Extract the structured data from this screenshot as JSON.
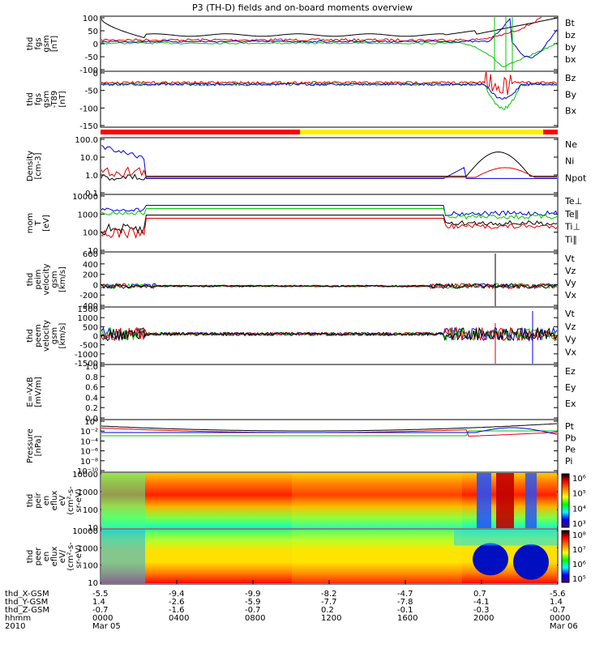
{
  "chart_data": {
    "title": "P3 (TH-D) fields and on-board moments overview",
    "type": "line",
    "x_axis": {
      "rows": [
        {
          "label": "thd_X-GSM",
          "values": [
            "-5.5",
            "-9.4",
            "-9.9",
            "-8.2",
            "-4.7",
            "0.7",
            "-5.6"
          ]
        },
        {
          "label": "thd_Y-GSM",
          "values": [
            "1.4",
            "-2.6",
            "-5.9",
            "-7.7",
            "-7.8",
            "-4.1",
            "1.4"
          ]
        },
        {
          "label": "thd_Z-GSM",
          "values": [
            "-0.7",
            "-1.6",
            "-0.7",
            "0.2",
            "-0.1",
            "-0.3",
            "-0.7"
          ]
        },
        {
          "label": "hhmm",
          "values": [
            "0000",
            "0400",
            "0800",
            "1200",
            "1600",
            "2000",
            "0000"
          ]
        },
        {
          "label": "2010",
          "values": [
            "Mar 05",
            "",
            "",
            "",
            "",
            "",
            "Mar 06"
          ]
        }
      ]
    },
    "panels": [
      {
        "id": "fgs",
        "ylabel": [
          "thd",
          "fgs",
          "gsm",
          "[nT]"
        ],
        "yticks": [
          "100",
          "50",
          "0",
          "-50",
          "-100"
        ],
        "legend": [
          {
            "name": "Bt",
            "color": "#000000"
          },
          {
            "name": "bz",
            "color": "#e00000"
          },
          {
            "name": "by",
            "color": "#00c800"
          },
          {
            "name": "bx",
            "color": "#0000e0"
          }
        ]
      },
      {
        "id": "fgs_dip",
        "ylabel": [
          "thd",
          "fgs",
          "gsm",
          "-T89",
          "[nT]"
        ],
        "yticks": [
          "0",
          "-50",
          "-100",
          "-150"
        ],
        "legend": [
          {
            "name": "Bz",
            "color": "#e00000"
          },
          {
            "name": "By",
            "color": "#00c800"
          },
          {
            "name": "Bx",
            "color": "#0000e0"
          }
        ]
      },
      {
        "id": "density",
        "ylabel": [
          "Density",
          "[cm-3]"
        ],
        "yticks": [
          "100.0",
          "10.0",
          "1.0",
          "0.1"
        ],
        "legend": [
          {
            "name": "Ne",
            "color": "#e00000"
          },
          {
            "name": "Ni",
            "color": "#000000"
          },
          {
            "name": "Npot",
            "color": "#0000e0"
          }
        ]
      },
      {
        "id": "temp",
        "ylabel": [
          "mom",
          "T",
          "[eV]"
        ],
        "yticks": [
          "10000",
          "1000",
          "100",
          "10"
        ],
        "legend": [
          {
            "name": "Te⊥",
            "color": "#e00000"
          },
          {
            "name": "Te∥",
            "color": "#000000"
          },
          {
            "name": "Ti⊥",
            "color": "#e00000"
          },
          {
            "name": "Ti∥",
            "color": "#00c800"
          }
        ]
      },
      {
        "id": "peim_v",
        "ylabel": [
          "thd",
          "peim",
          "velocity",
          "gsm",
          "[km/s]"
        ],
        "yticks": [
          "600",
          "400",
          "200",
          "0",
          "-200",
          "-400"
        ],
        "legend": [
          {
            "name": "Vt",
            "color": "#000000"
          },
          {
            "name": "Vz",
            "color": "#e00000"
          },
          {
            "name": "Vy",
            "color": "#00c800"
          },
          {
            "name": "Vx",
            "color": "#0000e0"
          }
        ]
      },
      {
        "id": "peem_v",
        "ylabel": [
          "thd",
          "peem",
          "velocity",
          "gsm",
          "[km/s]"
        ],
        "yticks": [
          "1500",
          "1000",
          "500",
          "0",
          "-500",
          "-1000",
          "-1500"
        ],
        "legend": [
          {
            "name": "Vt",
            "color": "#000000"
          },
          {
            "name": "Vz",
            "color": "#e00000"
          },
          {
            "name": "Vy",
            "color": "#00c800"
          },
          {
            "name": "Vx",
            "color": "#0000e0"
          }
        ]
      },
      {
        "id": "e_vxb",
        "ylabel": [
          "E=-VxB",
          "[mV/m]"
        ],
        "yticks": [
          "1.0",
          "0.8",
          "0.6",
          "0.4",
          "0.2",
          "0.0"
        ],
        "legend": [
          {
            "name": "Ez",
            "color": "#e00000"
          },
          {
            "name": "Ey",
            "color": "#00c800"
          },
          {
            "name": "Ex",
            "color": "#0000e0"
          }
        ]
      },
      {
        "id": "pressure",
        "ylabel": [
          "Pressure",
          "[nPa]"
        ],
        "yticks": [
          "10⁰",
          "10⁻²",
          "10⁻⁴",
          "10⁻⁶",
          "10⁻⁸",
          "10⁻¹⁰"
        ],
        "legend": [
          {
            "name": "Pt",
            "color": "#000000"
          },
          {
            "name": "Pb",
            "color": "#e00000"
          },
          {
            "name": "Pe",
            "color": "#00c800"
          },
          {
            "name": "Pi",
            "color": "#0000e0"
          }
        ]
      },
      {
        "id": "peir_spec",
        "ylabel": [
          "thd",
          "peir",
          "en",
          "eflux",
          "eV",
          "(cm²-s-",
          "sr-eV)"
        ],
        "yticks": [
          "10000",
          "1000",
          "100",
          "10"
        ],
        "colorbar": [
          "10⁶",
          "10⁵",
          "10⁴",
          "10³"
        ]
      },
      {
        "id": "peer_spec",
        "ylabel": [
          "thd",
          "peer",
          "en",
          "eflux",
          "eV/",
          "(cm²-s-",
          "sr-eV)"
        ],
        "yticks": [
          "10000",
          "1000",
          "100",
          "10"
        ],
        "colorbar": [
          "10⁸",
          "10⁷",
          "10⁶",
          "10⁵"
        ]
      }
    ]
  }
}
